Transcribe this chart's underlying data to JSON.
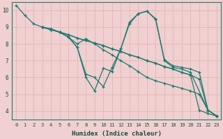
{
  "bg_color": "#f0d0d0",
  "plot_bg_color": "#f0d0d0",
  "grid_color": "#e8b8b8",
  "line_color": "#1a7a6e",
  "xlabel": "Humidex (Indice chaleur)",
  "xlim": [
    -0.5,
    23.5
  ],
  "ylim": [
    3.5,
    10.5
  ],
  "yticks": [
    4,
    5,
    6,
    7,
    8,
    9,
    10
  ],
  "xticks": [
    0,
    1,
    2,
    3,
    4,
    5,
    6,
    7,
    8,
    9,
    10,
    11,
    12,
    13,
    14,
    15,
    16,
    17,
    18,
    19,
    20,
    21,
    22,
    23
  ],
  "lines": [
    {
      "x": [
        0,
        1,
        2,
        3,
        4,
        5,
        6,
        7,
        8,
        9,
        10,
        11,
        12,
        13,
        14,
        15,
        16,
        17,
        18,
        19,
        20,
        21,
        22,
        23
      ],
      "y": [
        10.3,
        9.7,
        9.2,
        9.0,
        8.85,
        8.7,
        8.55,
        8.35,
        8.2,
        8.05,
        7.9,
        7.7,
        7.55,
        7.35,
        7.2,
        7.0,
        6.85,
        6.65,
        6.5,
        6.3,
        6.15,
        4.05,
        3.85,
        3.7
      ]
    },
    {
      "x": [
        3,
        4,
        5,
        6,
        7,
        8,
        9,
        10,
        11,
        12,
        13,
        14,
        15,
        16,
        17,
        18,
        19,
        20,
        21,
        22,
        23
      ],
      "y": [
        9.0,
        8.85,
        8.7,
        8.55,
        8.35,
        8.2,
        8.05,
        7.9,
        7.7,
        7.55,
        7.35,
        7.2,
        7.0,
        6.85,
        6.65,
        6.5,
        6.3,
        6.15,
        5.9,
        4.05,
        3.7
      ]
    },
    {
      "x": [
        3,
        4,
        5,
        6,
        7,
        8,
        8,
        9,
        10,
        11,
        12,
        13,
        14,
        15,
        16,
        17,
        18,
        19,
        20,
        21,
        22,
        23
      ],
      "y": [
        9.0,
        8.85,
        8.7,
        8.4,
        8.0,
        8.3,
        8.3,
        8.0,
        7.65,
        7.35,
        7.0,
        6.7,
        6.35,
        6.0,
        5.8,
        5.65,
        5.5,
        5.35,
        5.2,
        5.0,
        4.05,
        3.7
      ]
    },
    {
      "x": [
        3,
        4,
        5,
        6,
        7,
        8,
        9,
        10,
        11,
        12,
        13,
        14,
        15,
        16,
        17,
        18,
        19,
        20,
        21,
        22,
        23
      ],
      "y": [
        9.0,
        8.9,
        8.7,
        8.4,
        7.8,
        6.2,
        6.0,
        5.45,
        6.6,
        7.7,
        9.3,
        9.8,
        9.95,
        9.5,
        7.05,
        6.7,
        6.6,
        6.5,
        6.3,
        4.05,
        3.7
      ]
    },
    {
      "x": [
        3,
        5,
        6,
        7,
        8,
        9,
        10,
        11,
        12,
        13,
        14,
        15,
        16,
        17,
        18,
        19,
        20,
        22,
        23
      ],
      "y": [
        9.0,
        8.7,
        8.4,
        7.8,
        6.0,
        5.2,
        6.55,
        6.35,
        7.7,
        9.2,
        9.8,
        9.95,
        9.45,
        7.0,
        6.6,
        6.5,
        6.3,
        4.05,
        3.7
      ]
    }
  ]
}
